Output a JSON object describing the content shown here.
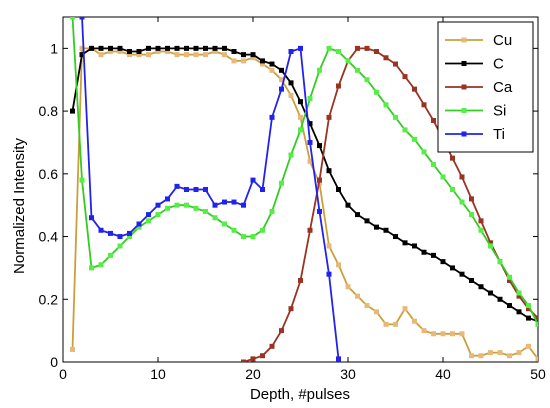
{
  "chart_data": {
    "type": "line",
    "xlabel": "Depth, #pulses",
    "ylabel": "Normalized Intensity",
    "xlim": [
      0,
      50
    ],
    "ylim": [
      0,
      1.1
    ],
    "xticks": [
      0,
      10,
      20,
      30,
      40,
      50
    ],
    "yticks": [
      0,
      0.2,
      0.4,
      0.6,
      0.8,
      1
    ],
    "grid": false,
    "legend_position": "top-right",
    "series": [
      {
        "name": "Cu",
        "color": "#c9a13c",
        "marker_color": "#e8b878",
        "points": [
          [
            1,
            0.04
          ],
          [
            2,
            1.0
          ],
          [
            3,
            1.0
          ],
          [
            4,
            0.98
          ],
          [
            5,
            0.99
          ],
          [
            6,
            0.99
          ],
          [
            7,
            0.98
          ],
          [
            8,
            0.98
          ],
          [
            9,
            0.98
          ],
          [
            10,
            0.99
          ],
          [
            11,
            0.99
          ],
          [
            12,
            0.98
          ],
          [
            13,
            0.98
          ],
          [
            14,
            0.98
          ],
          [
            15,
            0.98
          ],
          [
            16,
            0.99
          ],
          [
            17,
            0.98
          ],
          [
            18,
            0.96
          ],
          [
            19,
            0.96
          ],
          [
            20,
            0.97
          ],
          [
            21,
            0.95
          ],
          [
            22,
            0.93
          ],
          [
            23,
            0.9
          ],
          [
            24,
            0.85
          ],
          [
            25,
            0.78
          ],
          [
            26,
            0.64
          ],
          [
            27,
            0.57
          ],
          [
            28,
            0.37
          ],
          [
            29,
            0.31
          ],
          [
            30,
            0.24
          ],
          [
            31,
            0.21
          ],
          [
            32,
            0.18
          ],
          [
            33,
            0.16
          ],
          [
            34,
            0.12
          ],
          [
            35,
            0.12
          ],
          [
            36,
            0.17
          ],
          [
            37,
            0.13
          ],
          [
            38,
            0.1
          ],
          [
            39,
            0.09
          ],
          [
            40,
            0.09
          ],
          [
            41,
            0.09
          ],
          [
            42,
            0.09
          ],
          [
            43,
            0.02
          ],
          [
            44,
            0.02
          ],
          [
            45,
            0.03
          ],
          [
            46,
            0.03
          ],
          [
            47,
            0.02
          ],
          [
            48,
            0.03
          ],
          [
            49,
            0.05
          ],
          [
            50,
            0.01
          ]
        ]
      },
      {
        "name": "C",
        "color": "#000000",
        "marker_color": "#000000",
        "points": [
          [
            1,
            0.8
          ],
          [
            2,
            0.98
          ],
          [
            3,
            1.0
          ],
          [
            4,
            1.0
          ],
          [
            5,
            1.0
          ],
          [
            6,
            1.0
          ],
          [
            7,
            0.99
          ],
          [
            8,
            0.99
          ],
          [
            9,
            1.0
          ],
          [
            10,
            1.0
          ],
          [
            11,
            1.0
          ],
          [
            12,
            1.0
          ],
          [
            13,
            1.0
          ],
          [
            14,
            1.0
          ],
          [
            15,
            1.0
          ],
          [
            16,
            1.0
          ],
          [
            17,
            1.0
          ],
          [
            18,
            0.99
          ],
          [
            19,
            0.98
          ],
          [
            20,
            0.98
          ],
          [
            21,
            0.96
          ],
          [
            22,
            0.95
          ],
          [
            23,
            0.93
          ],
          [
            24,
            0.89
          ],
          [
            25,
            0.83
          ],
          [
            26,
            0.76
          ],
          [
            27,
            0.69
          ],
          [
            28,
            0.61
          ],
          [
            29,
            0.55
          ],
          [
            30,
            0.5
          ],
          [
            31,
            0.47
          ],
          [
            32,
            0.45
          ],
          [
            33,
            0.43
          ],
          [
            34,
            0.42
          ],
          [
            35,
            0.4
          ],
          [
            36,
            0.38
          ],
          [
            37,
            0.37
          ],
          [
            38,
            0.35
          ],
          [
            39,
            0.34
          ],
          [
            40,
            0.32
          ],
          [
            41,
            0.3
          ],
          [
            42,
            0.28
          ],
          [
            43,
            0.26
          ],
          [
            44,
            0.24
          ],
          [
            45,
            0.22
          ],
          [
            46,
            0.2
          ],
          [
            47,
            0.18
          ],
          [
            48,
            0.16
          ],
          [
            49,
            0.14
          ],
          [
            50,
            0.13
          ]
        ]
      },
      {
        "name": "Ca",
        "color": "#993322",
        "marker_color": "#993322",
        "points": [
          [
            19,
            0.0
          ],
          [
            20,
            0.01
          ],
          [
            21,
            0.02
          ],
          [
            22,
            0.05
          ],
          [
            23,
            0.1
          ],
          [
            24,
            0.17
          ],
          [
            25,
            0.26
          ],
          [
            26,
            0.42
          ],
          [
            27,
            0.58
          ],
          [
            28,
            0.78
          ],
          [
            29,
            0.88
          ],
          [
            30,
            0.96
          ],
          [
            31,
            1.0
          ],
          [
            32,
            1.0
          ],
          [
            33,
            0.99
          ],
          [
            34,
            0.97
          ],
          [
            35,
            0.95
          ],
          [
            36,
            0.91
          ],
          [
            37,
            0.87
          ],
          [
            38,
            0.82
          ],
          [
            39,
            0.77
          ],
          [
            40,
            0.71
          ],
          [
            41,
            0.65
          ],
          [
            42,
            0.59
          ],
          [
            43,
            0.52
          ],
          [
            44,
            0.45
          ],
          [
            45,
            0.38
          ],
          [
            46,
            0.32
          ],
          [
            47,
            0.26
          ],
          [
            48,
            0.21
          ],
          [
            49,
            0.17
          ],
          [
            50,
            0.14
          ]
        ]
      },
      {
        "name": "Si",
        "color": "#33cc22",
        "marker_color": "#55ee44",
        "points": [
          [
            1,
            1.1
          ],
          [
            2,
            0.58
          ],
          [
            3,
            0.3
          ],
          [
            4,
            0.31
          ],
          [
            5,
            0.34
          ],
          [
            6,
            0.37
          ],
          [
            7,
            0.4
          ],
          [
            8,
            0.43
          ],
          [
            9,
            0.45
          ],
          [
            10,
            0.47
          ],
          [
            11,
            0.49
          ],
          [
            12,
            0.5
          ],
          [
            13,
            0.5
          ],
          [
            14,
            0.49
          ],
          [
            15,
            0.48
          ],
          [
            16,
            0.46
          ],
          [
            17,
            0.44
          ],
          [
            18,
            0.42
          ],
          [
            19,
            0.4
          ],
          [
            20,
            0.4
          ],
          [
            21,
            0.42
          ],
          [
            22,
            0.48
          ],
          [
            23,
            0.57
          ],
          [
            24,
            0.66
          ],
          [
            25,
            0.74
          ],
          [
            26,
            0.84
          ],
          [
            27,
            0.93
          ],
          [
            28,
            1.0
          ],
          [
            29,
            0.99
          ],
          [
            30,
            0.96
          ],
          [
            31,
            0.93
          ],
          [
            32,
            0.9
          ],
          [
            33,
            0.86
          ],
          [
            34,
            0.82
          ],
          [
            35,
            0.78
          ],
          [
            36,
            0.74
          ],
          [
            37,
            0.71
          ],
          [
            38,
            0.67
          ],
          [
            39,
            0.63
          ],
          [
            40,
            0.59
          ],
          [
            41,
            0.55
          ],
          [
            42,
            0.51
          ],
          [
            43,
            0.47
          ],
          [
            44,
            0.42
          ],
          [
            45,
            0.37
          ],
          [
            46,
            0.32
          ],
          [
            47,
            0.27
          ],
          [
            48,
            0.22
          ],
          [
            49,
            0.18
          ],
          [
            50,
            0.12
          ]
        ]
      },
      {
        "name": "Ti",
        "color": "#2222ee",
        "marker_color": "#2222ee",
        "points": [
          [
            2,
            1.1
          ],
          [
            3,
            0.46
          ],
          [
            4,
            0.42
          ],
          [
            5,
            0.41
          ],
          [
            6,
            0.4
          ],
          [
            7,
            0.41
          ],
          [
            8,
            0.44
          ],
          [
            9,
            0.47
          ],
          [
            10,
            0.5
          ],
          [
            11,
            0.52
          ],
          [
            12,
            0.56
          ],
          [
            13,
            0.55
          ],
          [
            14,
            0.55
          ],
          [
            15,
            0.55
          ],
          [
            16,
            0.5
          ],
          [
            17,
            0.51
          ],
          [
            18,
            0.51
          ],
          [
            19,
            0.5
          ],
          [
            20,
            0.58
          ],
          [
            21,
            0.55
          ],
          [
            22,
            0.78
          ],
          [
            23,
            0.87
          ],
          [
            24,
            0.99
          ],
          [
            25,
            1.0
          ],
          [
            26,
            0.7
          ],
          [
            27,
            0.48
          ],
          [
            28,
            0.28
          ],
          [
            29,
            0.01
          ]
        ]
      }
    ]
  }
}
